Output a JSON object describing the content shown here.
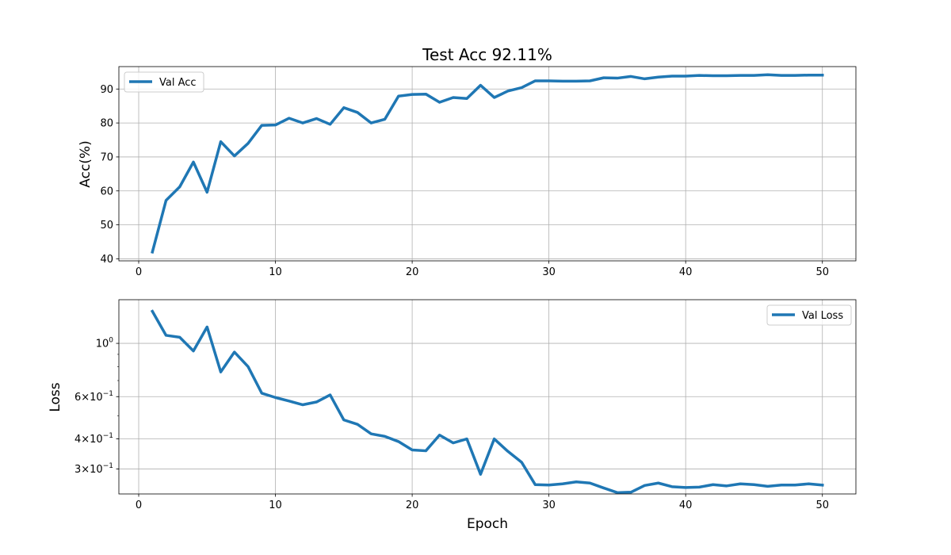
{
  "chart_data": [
    {
      "type": "line",
      "title": "Test Acc 92.11%",
      "xlabel": "",
      "ylabel": "Acc(%)",
      "xlim": [
        -1.45,
        52.45
      ],
      "ylim": [
        39.4,
        96.6
      ],
      "xticks": [
        0,
        10,
        20,
        30,
        40,
        50
      ],
      "yticks": [
        40,
        50,
        60,
        70,
        80,
        90
      ],
      "grid": true,
      "legend_position": "top-left",
      "series": [
        {
          "name": "Val Acc",
          "color": "#1f77b4",
          "x": [
            1,
            2,
            3,
            4,
            5,
            6,
            7,
            8,
            9,
            10,
            11,
            12,
            13,
            14,
            15,
            16,
            17,
            18,
            19,
            20,
            21,
            22,
            23,
            24,
            25,
            26,
            27,
            28,
            29,
            30,
            31,
            32,
            33,
            34,
            35,
            36,
            37,
            38,
            39,
            40,
            41,
            42,
            43,
            44,
            45,
            46,
            47,
            48,
            49,
            50
          ],
          "y": [
            42.0,
            57.2,
            61.2,
            68.5,
            59.6,
            74.5,
            70.3,
            74.0,
            79.3,
            79.4,
            81.4,
            80.0,
            81.3,
            79.6,
            84.5,
            83.1,
            80.0,
            81.1,
            87.9,
            88.4,
            88.5,
            86.1,
            87.5,
            87.2,
            91.1,
            87.5,
            89.4,
            90.4,
            92.4,
            92.4,
            92.3,
            92.3,
            92.4,
            93.3,
            93.2,
            93.7,
            93.0,
            93.5,
            93.8,
            93.8,
            94.0,
            93.9,
            93.9,
            94.0,
            94.0,
            94.2,
            94.0,
            94.0,
            94.1,
            94.1
          ]
        }
      ]
    },
    {
      "type": "line",
      "title": "",
      "xlabel": "Epoch",
      "ylabel": "Loss",
      "y_scale": "log",
      "xlim": [
        -1.45,
        52.45
      ],
      "ylim": [
        0.236,
        1.52
      ],
      "xticks": [
        0,
        10,
        20,
        30,
        40,
        50
      ],
      "yticks": [
        {
          "value": 1.0,
          "label": "10",
          "sup": "0"
        },
        {
          "value": 0.6,
          "label": "6×10",
          "sup": "−1"
        },
        {
          "value": 0.4,
          "label": "4×10",
          "sup": "−1"
        },
        {
          "value": 0.3,
          "label": "3×10",
          "sup": "−1"
        }
      ],
      "minor_yticks": [
        0.3,
        0.4,
        0.5,
        0.6,
        0.7,
        0.8,
        0.9
      ],
      "grid": true,
      "legend_position": "top-right",
      "series": [
        {
          "name": "Val Loss",
          "color": "#1f77b4",
          "x": [
            1,
            2,
            3,
            4,
            5,
            6,
            7,
            8,
            9,
            10,
            11,
            12,
            13,
            14,
            15,
            16,
            17,
            18,
            19,
            20,
            21,
            22,
            23,
            24,
            25,
            26,
            27,
            28,
            29,
            30,
            31,
            32,
            33,
            34,
            35,
            36,
            37,
            38,
            39,
            40,
            41,
            42,
            43,
            44,
            45,
            46,
            47,
            48,
            49,
            50
          ],
          "y": [
            1.36,
            1.08,
            1.06,
            0.93,
            1.17,
            0.76,
            0.92,
            0.8,
            0.62,
            0.595,
            0.575,
            0.555,
            0.57,
            0.61,
            0.48,
            0.46,
            0.42,
            0.41,
            0.39,
            0.36,
            0.357,
            0.415,
            0.385,
            0.4,
            0.285,
            0.4,
            0.355,
            0.32,
            0.258,
            0.257,
            0.26,
            0.265,
            0.262,
            0.25,
            0.239,
            0.24,
            0.256,
            0.262,
            0.253,
            0.251,
            0.252,
            0.258,
            0.255,
            0.26,
            0.258,
            0.254,
            0.257,
            0.257,
            0.26,
            0.257
          ]
        }
      ]
    }
  ]
}
